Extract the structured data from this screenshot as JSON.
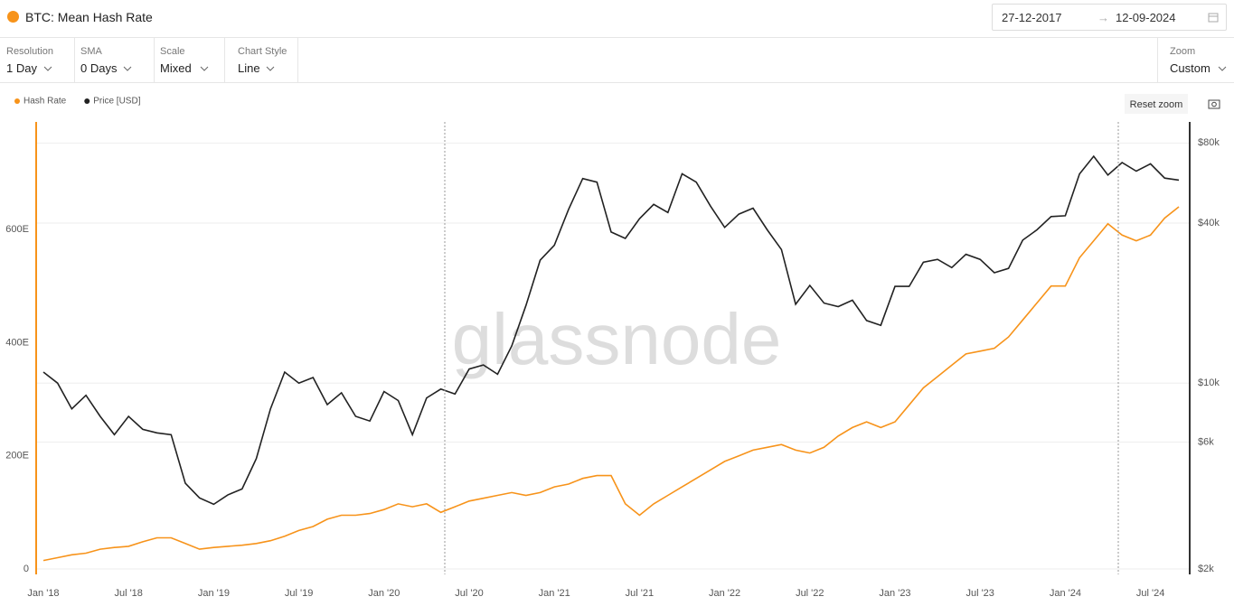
{
  "header": {
    "title": "BTC: Mean Hash Rate",
    "date_from": "27-12-2017",
    "date_to": "12-09-2024"
  },
  "controls": [
    {
      "label": "Resolution",
      "value": "1 Day"
    },
    {
      "label": "SMA",
      "value": "0 Days"
    },
    {
      "label": "Scale",
      "value": "Mixed"
    },
    {
      "label": "Chart Style",
      "value": "Line"
    }
  ],
  "zoom": {
    "label": "Zoom",
    "value": "Custom"
  },
  "reset_zoom": "Reset zoom",
  "watermark": "glassnode",
  "chart_data": {
    "type": "line",
    "x": [
      "2018-01",
      "2018-02",
      "2018-03",
      "2018-04",
      "2018-05",
      "2018-06",
      "2018-07",
      "2018-08",
      "2018-09",
      "2018-10",
      "2018-11",
      "2018-12",
      "2019-01",
      "2019-02",
      "2019-03",
      "2019-04",
      "2019-05",
      "2019-06",
      "2019-07",
      "2019-08",
      "2019-09",
      "2019-10",
      "2019-11",
      "2019-12",
      "2020-01",
      "2020-02",
      "2020-03",
      "2020-04",
      "2020-05",
      "2020-06",
      "2020-07",
      "2020-08",
      "2020-09",
      "2020-10",
      "2020-11",
      "2020-12",
      "2021-01",
      "2021-02",
      "2021-03",
      "2021-04",
      "2021-05",
      "2021-06",
      "2021-07",
      "2021-08",
      "2021-09",
      "2021-10",
      "2021-11",
      "2021-12",
      "2022-01",
      "2022-02",
      "2022-03",
      "2022-04",
      "2022-05",
      "2022-06",
      "2022-07",
      "2022-08",
      "2022-09",
      "2022-10",
      "2022-11",
      "2022-12",
      "2023-01",
      "2023-02",
      "2023-03",
      "2023-04",
      "2023-05",
      "2023-06",
      "2023-07",
      "2023-08",
      "2023-09",
      "2023-10",
      "2023-11",
      "2023-12",
      "2024-01",
      "2024-02",
      "2024-03",
      "2024-04",
      "2024-05",
      "2024-06",
      "2024-07",
      "2024-08",
      "2024-09"
    ],
    "series": [
      {
        "name": "Hash Rate",
        "color": "#f7931a",
        "axis": "y",
        "values": [
          15,
          20,
          25,
          28,
          35,
          38,
          40,
          48,
          55,
          55,
          45,
          35,
          38,
          40,
          42,
          45,
          50,
          58,
          68,
          75,
          88,
          95,
          95,
          98,
          105,
          115,
          110,
          115,
          100,
          110,
          120,
          125,
          130,
          135,
          130,
          135,
          145,
          150,
          160,
          165,
          165,
          115,
          95,
          115,
          130,
          145,
          160,
          175,
          190,
          200,
          210,
          215,
          220,
          210,
          205,
          215,
          235,
          250,
          260,
          250,
          260,
          290,
          320,
          340,
          360,
          380,
          385,
          390,
          410,
          440,
          470,
          500,
          500,
          550,
          580,
          610,
          590,
          580,
          590,
          620,
          640
        ]
      },
      {
        "name": "Price [USD]",
        "color": "#222222",
        "axis": "y2",
        "values": [
          11000,
          10000,
          8000,
          9000,
          7500,
          6400,
          7500,
          6700,
          6500,
          6400,
          4200,
          3700,
          3500,
          3800,
          4000,
          5200,
          8000,
          11000,
          10000,
          10500,
          8300,
          9200,
          7500,
          7200,
          9300,
          8600,
          6400,
          8800,
          9500,
          9100,
          11300,
          11700,
          10800,
          13800,
          19600,
          29000,
          33000,
          45000,
          58800,
          57000,
          37000,
          35000,
          41500,
          47000,
          43800,
          61300,
          57000,
          46300,
          38500,
          43200,
          45500,
          37700,
          31800,
          19800,
          23300,
          20000,
          19400,
          20500,
          17200,
          16500,
          23100,
          23100,
          28500,
          29200,
          27200,
          30500,
          29200,
          26000,
          27000,
          34500,
          37700,
          42300,
          42600,
          61200,
          71300,
          60600,
          67500,
          62700,
          66800,
          59000,
          58000
        ]
      }
    ],
    "ylim": [
      0,
      790
    ],
    "yticks": [
      0,
      {
        "value": 200,
        "label": "200E"
      },
      {
        "value": 400,
        "label": "400E"
      },
      {
        "value": 600,
        "label": "600E"
      }
    ],
    "y2lim": [
      2000,
      96000
    ],
    "y2scale": "log",
    "y2ticks": [
      {
        "value": 2000,
        "label": "$2k"
      },
      {
        "value": 6000,
        "label": "$6k"
      },
      {
        "value": 10000,
        "label": "$10k"
      },
      {
        "value": 40000,
        "label": "$40k"
      },
      {
        "value": 80000,
        "label": "$80k"
      }
    ],
    "xticks": [
      {
        "value": "2018-01",
        "label": "Jan '18"
      },
      {
        "value": "2018-07",
        "label": "Jul '18"
      },
      {
        "value": "2019-01",
        "label": "Jan '19"
      },
      {
        "value": "2019-07",
        "label": "Jul '19"
      },
      {
        "value": "2020-01",
        "label": "Jan '20"
      },
      {
        "value": "2020-07",
        "label": "Jul '20"
      },
      {
        "value": "2021-01",
        "label": "Jan '21"
      },
      {
        "value": "2021-07",
        "label": "Jul '21"
      },
      {
        "value": "2022-01",
        "label": "Jan '22"
      },
      {
        "value": "2022-07",
        "label": "Jul '22"
      },
      {
        "value": "2023-01",
        "label": "Jan '23"
      },
      {
        "value": "2023-07",
        "label": "Jul '23"
      },
      {
        "value": "2024-01",
        "label": "Jan '24"
      },
      {
        "value": "2024-07",
        "label": "Jul '24"
      }
    ],
    "grid": true
  }
}
